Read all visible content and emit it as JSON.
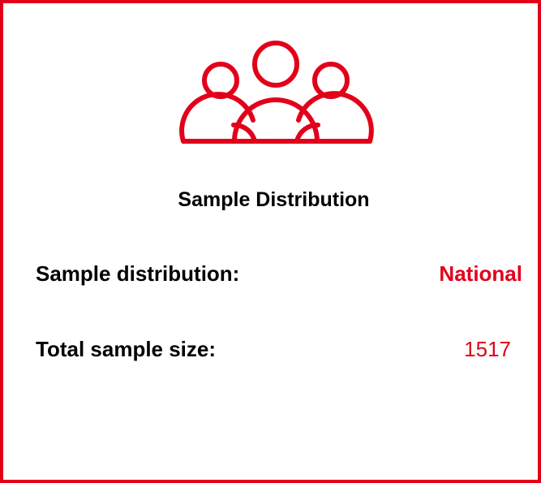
{
  "title": "Sample Distribution",
  "rows": [
    {
      "label": "Sample distribution:",
      "value": "National"
    },
    {
      "label": "Total sample size:",
      "value": 1517
    }
  ]
}
